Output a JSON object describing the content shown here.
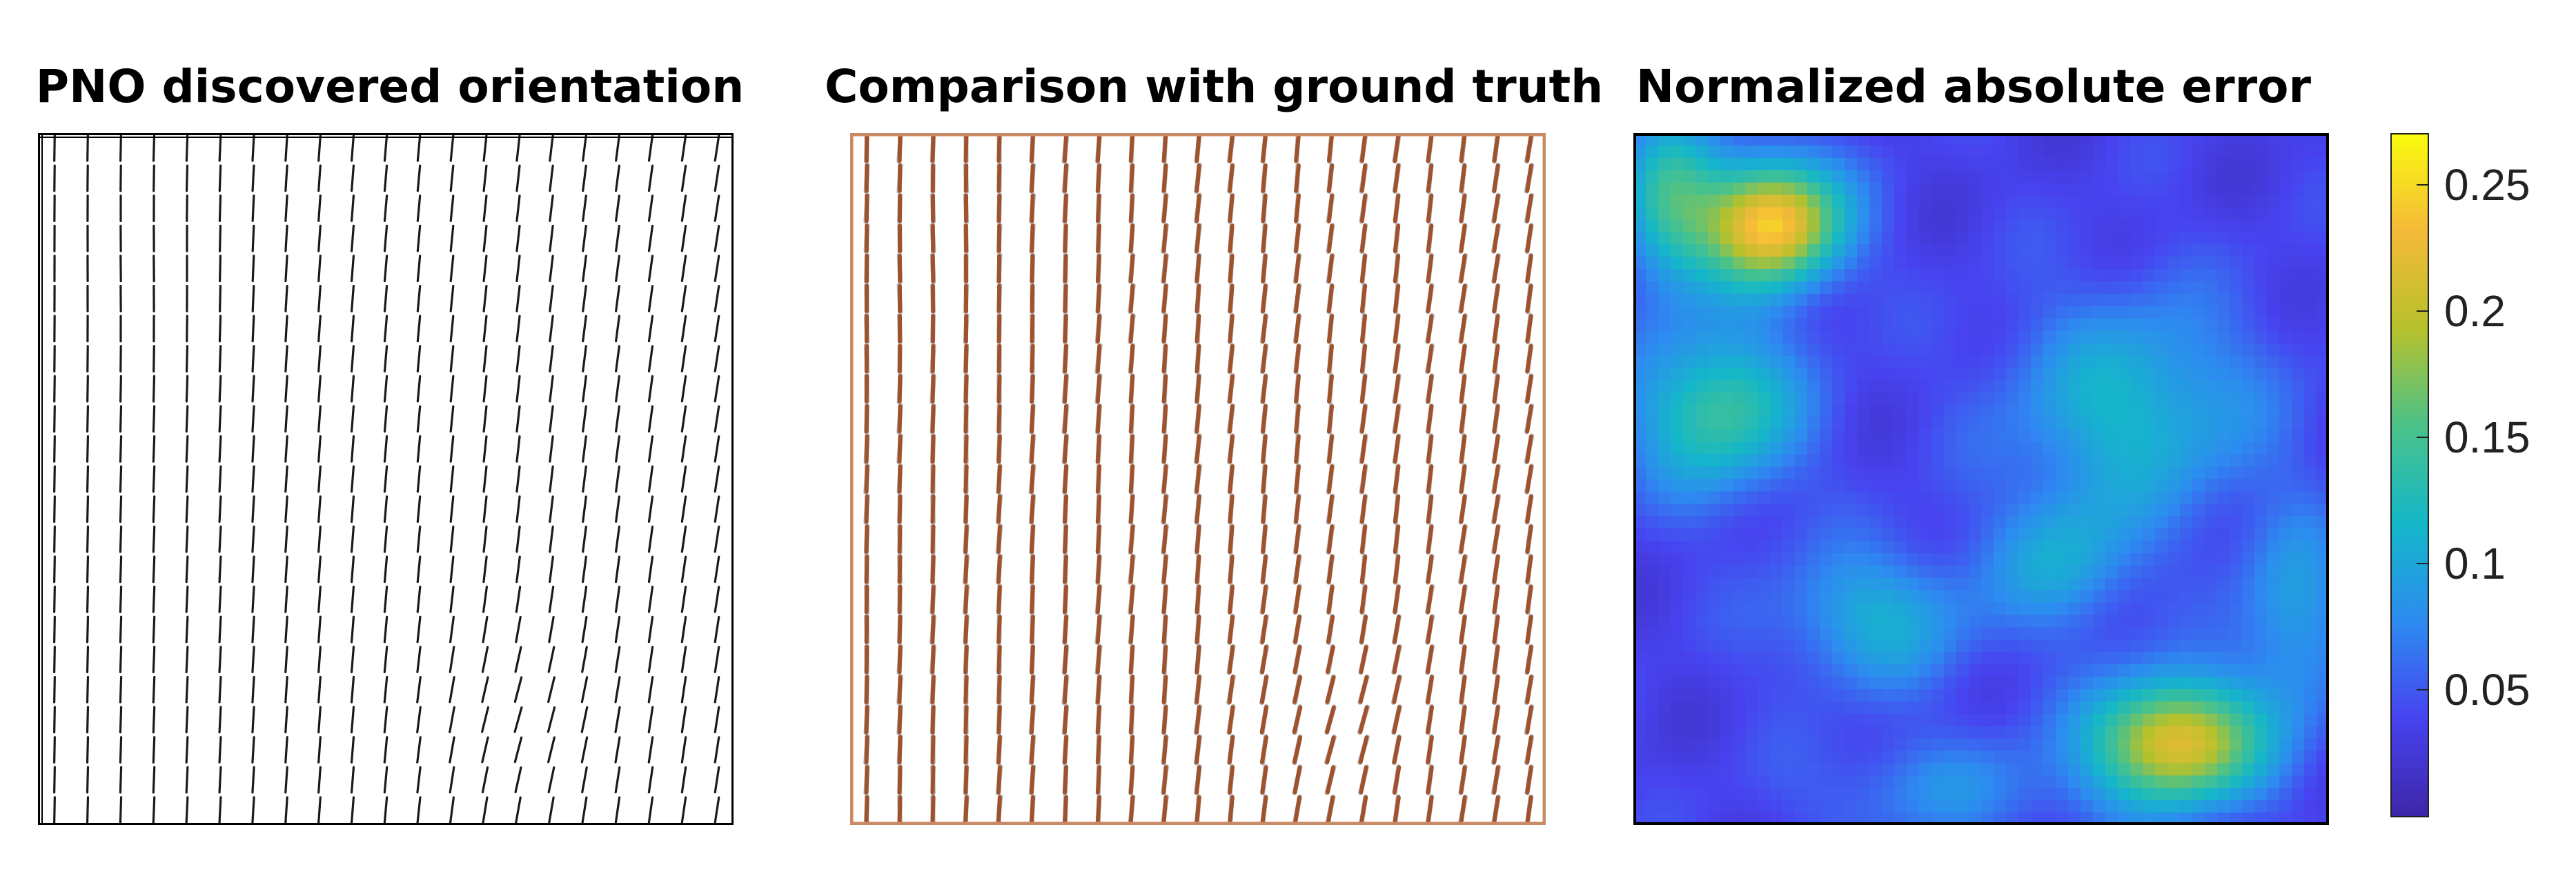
{
  "panels": [
    {
      "title": "PNO discovered orientation"
    },
    {
      "title": "Comparison with ground truth"
    },
    {
      "title": "Normalized absolute error"
    }
  ],
  "colors": {
    "field_line": "#1a1a1a",
    "predicted_line": "#a0522d",
    "ground_truth_line": "#b8b8b8",
    "panel2_border": "#c98a66",
    "colormap": [
      "#3e26a8",
      "#4743f0",
      "#2d8cf0",
      "#14b7c9",
      "#4ac28a",
      "#b6c12c",
      "#f5b93a",
      "#f9fb0e"
    ]
  },
  "colorbar": {
    "min": 0.0,
    "max": 0.27,
    "ticks": [
      "0.05",
      "0.1",
      "0.15",
      "0.2",
      "0.25"
    ]
  }
}
